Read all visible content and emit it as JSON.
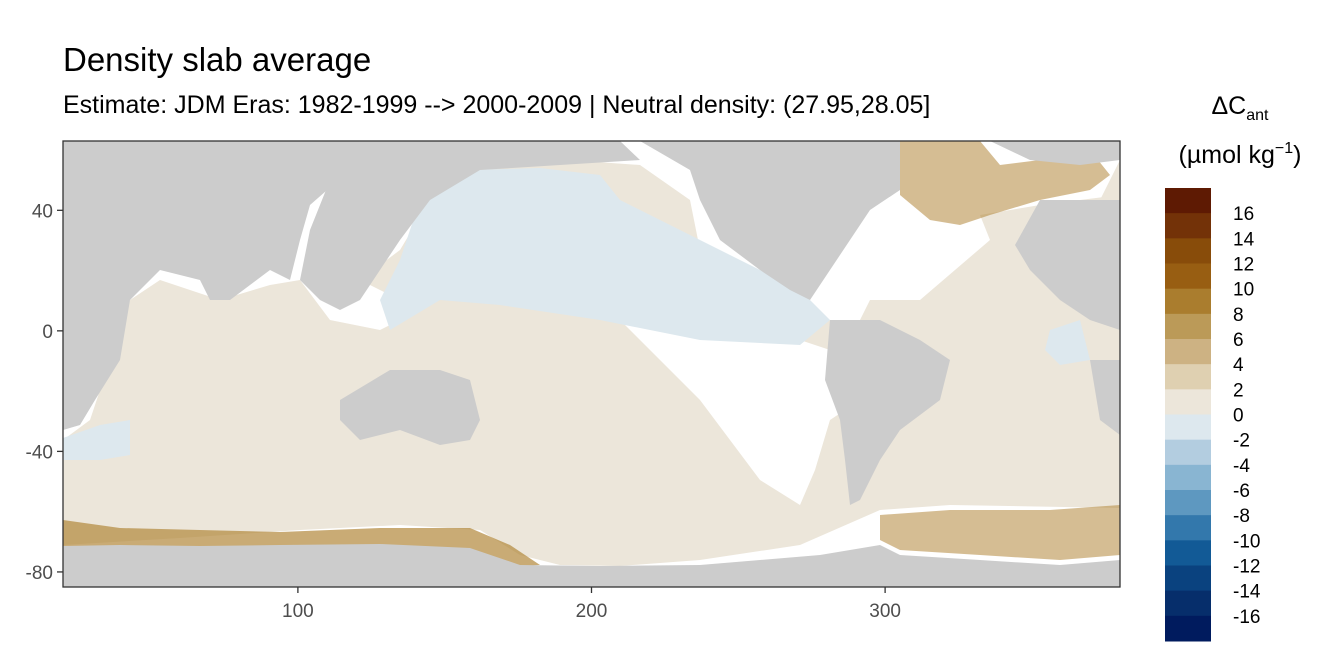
{
  "chart_data": {
    "type": "heatmap",
    "title": "Density slab average",
    "subtitle": "Estimate: JDM Eras: 1982-1999 --> 2000-2009 | Neutral density: (27.95,28.05]",
    "xlabel": "",
    "ylabel": "",
    "xlim": [
      20,
      380
    ],
    "ylim": [
      -85,
      63
    ],
    "x_ticks": [
      100,
      200,
      300
    ],
    "y_ticks": [
      40,
      0,
      -40,
      -80
    ],
    "grid": false,
    "legend": {
      "position": "right",
      "title_main": "ΔC",
      "title_sub": "ant",
      "unit_main": "(µmol kg",
      "unit_sup": "−1",
      "unit_close": ")",
      "labels": [
        "16",
        "14",
        "12",
        "10",
        "8",
        "6",
        "4",
        "2",
        "0",
        "-2",
        "-4",
        "-6",
        "-8",
        "-10",
        "-12",
        "-14",
        "-16"
      ],
      "colors": [
        "#5e1a03",
        "#733208",
        "#884c0a",
        "#985e12",
        "#aa7d2e",
        "#bb9a58",
        "#cdb283",
        "#dfd0b1",
        "#ece6da",
        "#dde8ee",
        "#b3cde0",
        "#89b5d2",
        "#5e98c0",
        "#3378ac",
        "#125a96",
        "#0a427f",
        "#062e6b",
        "#001b5e"
      ]
    },
    "colors": {
      "land": "#cccccc",
      "ocean_no_data": "#ffffff",
      "near_zero_positive": "#ece6da",
      "near_zero_negative": "#dde8ee",
      "high_positive": "#b2873a"
    }
  }
}
